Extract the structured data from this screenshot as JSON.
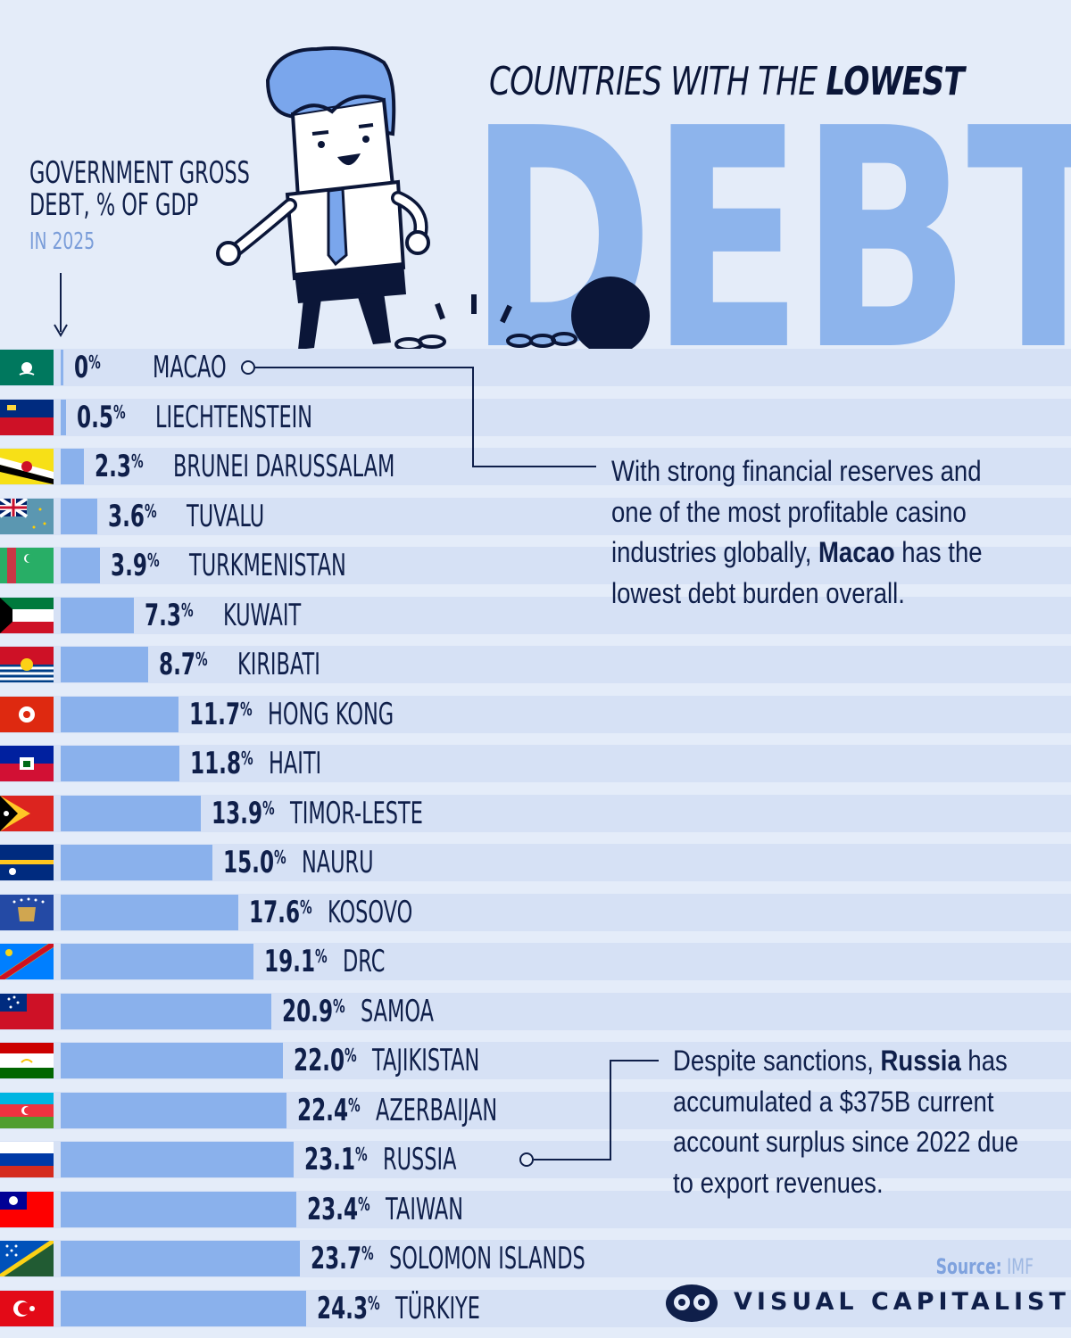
{
  "header": {
    "title_part1": "COUNTRIES WITH THE",
    "title_part2": "LOWEST",
    "title_big": "DEBT"
  },
  "axis": {
    "title": "GOVERNMENT GROSS DEBT, % OF GDP",
    "title_line1": "GOVERNMENT GROSS",
    "title_line2": "DEBT, % OF GDP",
    "subtitle": "IN 2025"
  },
  "chart_data": {
    "type": "bar",
    "orientation": "horizontal",
    "title": "COUNTRIES WITH THE LOWEST DEBT",
    "xlabel": "GOVERNMENT GROSS DEBT, % OF GDP",
    "subtitle": "IN 2025",
    "unit": "%",
    "xlim": [
      0,
      24.3
    ],
    "grid": false,
    "categories": [
      "MACAO",
      "LIECHTENSTEIN",
      "BRUNEI DARUSSALAM",
      "TUVALU",
      "TURKMENISTAN",
      "KUWAIT",
      "KIRIBATI",
      "HONG KONG",
      "HAITI",
      "TIMOR-LESTE",
      "NAURU",
      "KOSOVO",
      "DRC",
      "SAMOA",
      "TAJIKISTAN",
      "AZERBAIJAN",
      "RUSSIA",
      "TAIWAN",
      "SOLOMON ISLANDS",
      "TÜRKIYE"
    ],
    "values": [
      0,
      0.5,
      2.3,
      3.6,
      3.9,
      7.3,
      8.7,
      11.7,
      11.8,
      13.9,
      15.0,
      17.6,
      19.1,
      20.9,
      22.0,
      22.4,
      23.1,
      23.4,
      23.7,
      24.3
    ],
    "value_labels": [
      "0",
      "0.5",
      "2.3",
      "3.6",
      "3.9",
      "7.3",
      "8.7",
      "11.7",
      "11.8",
      "13.9",
      "15.0",
      "17.6",
      "19.1",
      "20.9",
      "22.0",
      "22.4",
      "23.1",
      "23.4",
      "23.7",
      "24.3"
    ],
    "flags": [
      "macao-flag-icon",
      "liechtenstein-flag-icon",
      "brunei-flag-icon",
      "tuvalu-flag-icon",
      "turkmenistan-flag-icon",
      "kuwait-flag-icon",
      "kiribati-flag-icon",
      "hong-kong-flag-icon",
      "haiti-flag-icon",
      "timor-leste-flag-icon",
      "nauru-flag-icon",
      "kosovo-flag-icon",
      "drc-flag-icon",
      "samoa-flag-icon",
      "tajikistan-flag-icon",
      "azerbaijan-flag-icon",
      "russia-flag-icon",
      "taiwan-flag-icon",
      "solomon-islands-flag-icon",
      "turkiye-flag-icon"
    ],
    "pct_symbol": "%"
  },
  "annotations": {
    "macao_note_parts": [
      "With strong financial reserves and one of the most profitable casino industries globally, ",
      "Macao",
      " has the lowest debt burden overall."
    ],
    "russia_note_parts": [
      "Despite sanctions, ",
      "Russia",
      " has accumulated a $375B current account surplus since 2022 due to export revenues."
    ]
  },
  "footer": {
    "source_label": "Source:",
    "source_value": "IMF",
    "brand": "VISUAL CAPITALIST"
  },
  "colors": {
    "background": "#e4ecf9",
    "stripe": "#d6e1f5",
    "bar": "#8ab1ec",
    "text": "#0f1f4a",
    "accent": "#8db4ec"
  },
  "illustration": "businessman-breaking-free-from-ball-and-chain"
}
